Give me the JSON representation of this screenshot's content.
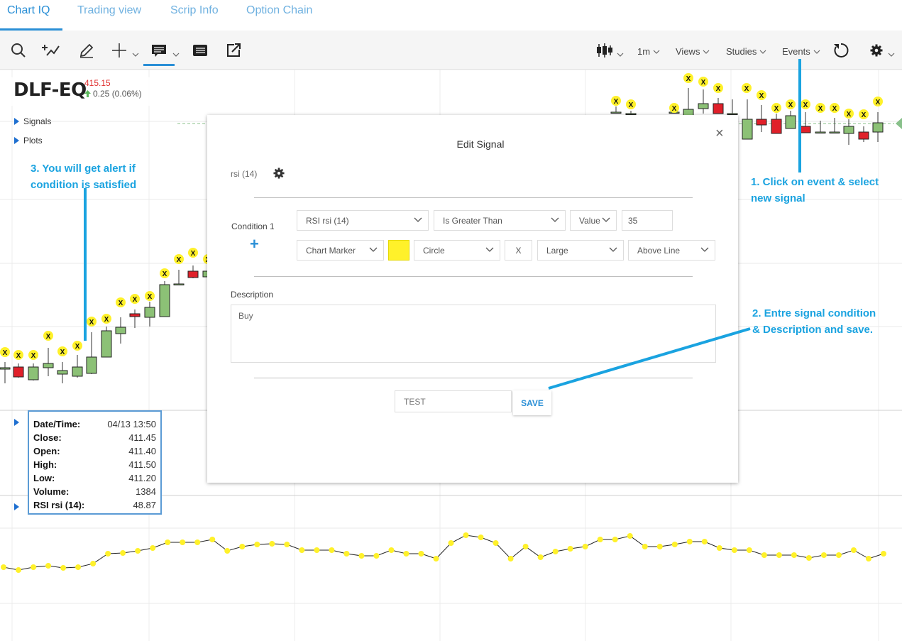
{
  "tabs": [
    {
      "label": "Chart IQ",
      "active": true
    },
    {
      "label": "Trading view",
      "active": false
    },
    {
      "label": "Scrip Info",
      "active": false
    },
    {
      "label": "Option Chain",
      "active": false
    }
  ],
  "toolbar": {
    "left_icons": [
      "search-icon",
      "add-study-icon",
      "draw-pencil-icon",
      "crosshair-icon",
      "info-display-icon",
      "table-icon",
      "share-icon"
    ],
    "periodicity": "1m",
    "views": "Views",
    "studies": "Studies",
    "events": "Events",
    "right_icons": [
      "chart-style-icon",
      "refresh-icon",
      "settings-icon"
    ]
  },
  "symbol": {
    "name": "DLF-EQ",
    "price": "415.15",
    "change": "0.25 (0.06%)"
  },
  "panels": {
    "signals": "Signals",
    "plots": "Plots"
  },
  "annotations": {
    "step1_line1": "1. Click on event & select",
    "step1_line2": "new signal",
    "step2_line1": "2. Entre signal condition",
    "step2_line2": "& Description and save.",
    "step3_line1": "3. You will get alert if",
    "step3_line2": "condition is satisfied"
  },
  "datatip": [
    {
      "label": "Date/Time:",
      "value": "04/13 13:50"
    },
    {
      "label": "Close:",
      "value": "411.45"
    },
    {
      "label": "Open:",
      "value": "411.40"
    },
    {
      "label": "High:",
      "value": "411.50"
    },
    {
      "label": "Low:",
      "value": "411.20"
    },
    {
      "label": "Volume:",
      "value": "1384"
    },
    {
      "label": "RSI rsi (14):",
      "value": "48.87"
    }
  ],
  "dialog": {
    "title": "Edit Signal",
    "study": "rsi (14)",
    "condition_label": "Condition 1",
    "add_label": "+",
    "condition": {
      "study_field": "RSI rsi (14)",
      "operator": "Is Greater Than",
      "compare_type": "Value",
      "value": "35",
      "marker_type": "Chart Marker",
      "marker_color": "#fff12a",
      "shape": "Circle",
      "label": "X",
      "size": "Large",
      "position": "Above Line"
    },
    "description_label": "Description",
    "description": "Buy",
    "signal_name": "TEST",
    "save_label": "SAVE",
    "close_label": "×"
  },
  "colors": {
    "accent": "#2a8fd6",
    "annotation": "#1aa3e0",
    "up_candle": "#8cc176",
    "down_candle": "#e0202a",
    "marker": "#fff12a",
    "price_red": "#e0302f"
  }
}
